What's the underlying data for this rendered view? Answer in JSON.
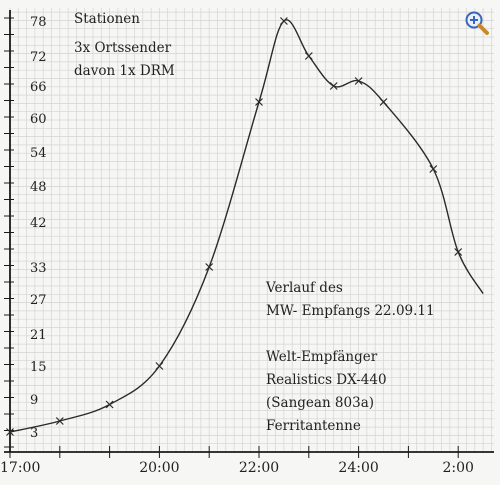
{
  "chart_data": {
    "type": "line",
    "title": "",
    "xlabel": "",
    "ylabel": "",
    "x_tick_labels": [
      "17:00",
      "20:00",
      "22:00",
      "24:00",
      "2:00"
    ],
    "x_tick_hours": [
      17,
      20,
      22,
      24,
      26
    ],
    "y_ticks": [
      3,
      9,
      15,
      21,
      27,
      33,
      42,
      48,
      54,
      60,
      66,
      72,
      78
    ],
    "series": [
      {
        "points": [
          {
            "time": "17:00",
            "value": 3
          },
          {
            "time": "18:00",
            "value": 5
          },
          {
            "time": "19:00",
            "value": 8
          },
          {
            "time": "20:00",
            "value": 15
          },
          {
            "time": "21:00",
            "value": 33
          },
          {
            "time": "22:00",
            "value": 63
          },
          {
            "time": "22:30",
            "value": 78
          },
          {
            "time": "23:00",
            "value": 72
          },
          {
            "time": "23:30",
            "value": 66
          },
          {
            "time": "24:00",
            "value": 67
          },
          {
            "time": "24:30",
            "value": 63
          },
          {
            "time": "01:30",
            "value": 51
          },
          {
            "time": "02:00",
            "value": 36
          },
          {
            "time": "02:30",
            "value": 28
          }
        ]
      }
    ],
    "annotations": {
      "top_left": [
        "Stationen",
        "3x Ortssender",
        "davon 1x DRM"
      ],
      "description": [
        "Verlauf des",
        "MW- Empfangs 22.09.11",
        "",
        "Welt-Empfänger",
        "Realistics DX-440",
        "(Sangean 803a)",
        "Ferritantenne"
      ]
    },
    "grid": true,
    "colors": {
      "line": "#2a2a2a",
      "grid": "#d4d4d4",
      "axis": "#1a1a1a",
      "background": "#f6f6f4"
    }
  },
  "ui": {
    "zoom_icon": "magnifier-plus-icon"
  }
}
